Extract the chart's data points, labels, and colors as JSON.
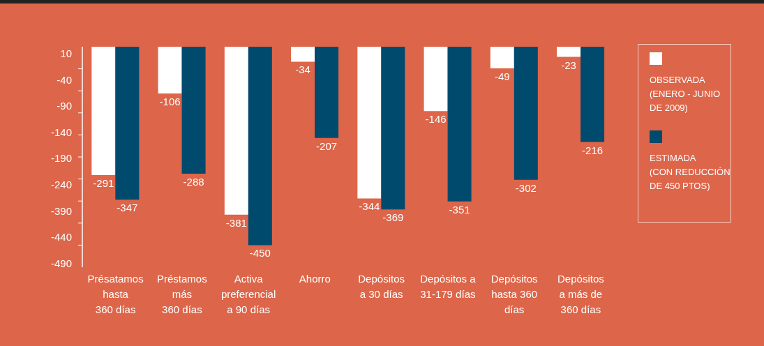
{
  "chart_data": {
    "type": "bar",
    "categories": [
      "Présatamos\nhasta\n360 días",
      "Préstamos\nmás\n360 días",
      "Activa\npreferencial\na 90 días",
      "Ahorro",
      "Depósitos\na 30 días",
      "Depósitos a\n31-179 días",
      "Depósitos\nhasta 360\ndías",
      "Depósitos\na más de\n360 días"
    ],
    "series": [
      {
        "name": "OBSERVADA\n(ENERO - JUNIO\nDE 2009)",
        "color": "#ffffff",
        "values": [
          -291,
          -106,
          -381,
          -34,
          -344,
          -146,
          -49,
          -23
        ]
      },
      {
        "name": "ESTIMADA\n(CON REDUCCIÓN\nDE 450 PTOS)",
        "color": "#004a6e",
        "values": [
          -347,
          -288,
          -450,
          -207,
          -369,
          -351,
          -302,
          -216
        ]
      }
    ],
    "ylim": [
      -500,
      0
    ],
    "yticks": [
      {
        "value": -50,
        "label": null
      },
      {
        "value": -100,
        "label": null
      },
      {
        "value": -150,
        "label": null
      },
      {
        "value": -200,
        "label": null
      },
      {
        "value": -250,
        "label": null
      },
      {
        "value": -300,
        "label": null
      },
      {
        "value": -350,
        "label": null
      },
      {
        "value": -400,
        "label": null
      },
      {
        "value": -450,
        "label": null
      }
    ],
    "annotations": [
      "10",
      "-40",
      "-90",
      "-140",
      "-190",
      "-240",
      "-390",
      "-440",
      "-490"
    ],
    "data_labels": true,
    "legend": "right",
    "grid": false
  }
}
